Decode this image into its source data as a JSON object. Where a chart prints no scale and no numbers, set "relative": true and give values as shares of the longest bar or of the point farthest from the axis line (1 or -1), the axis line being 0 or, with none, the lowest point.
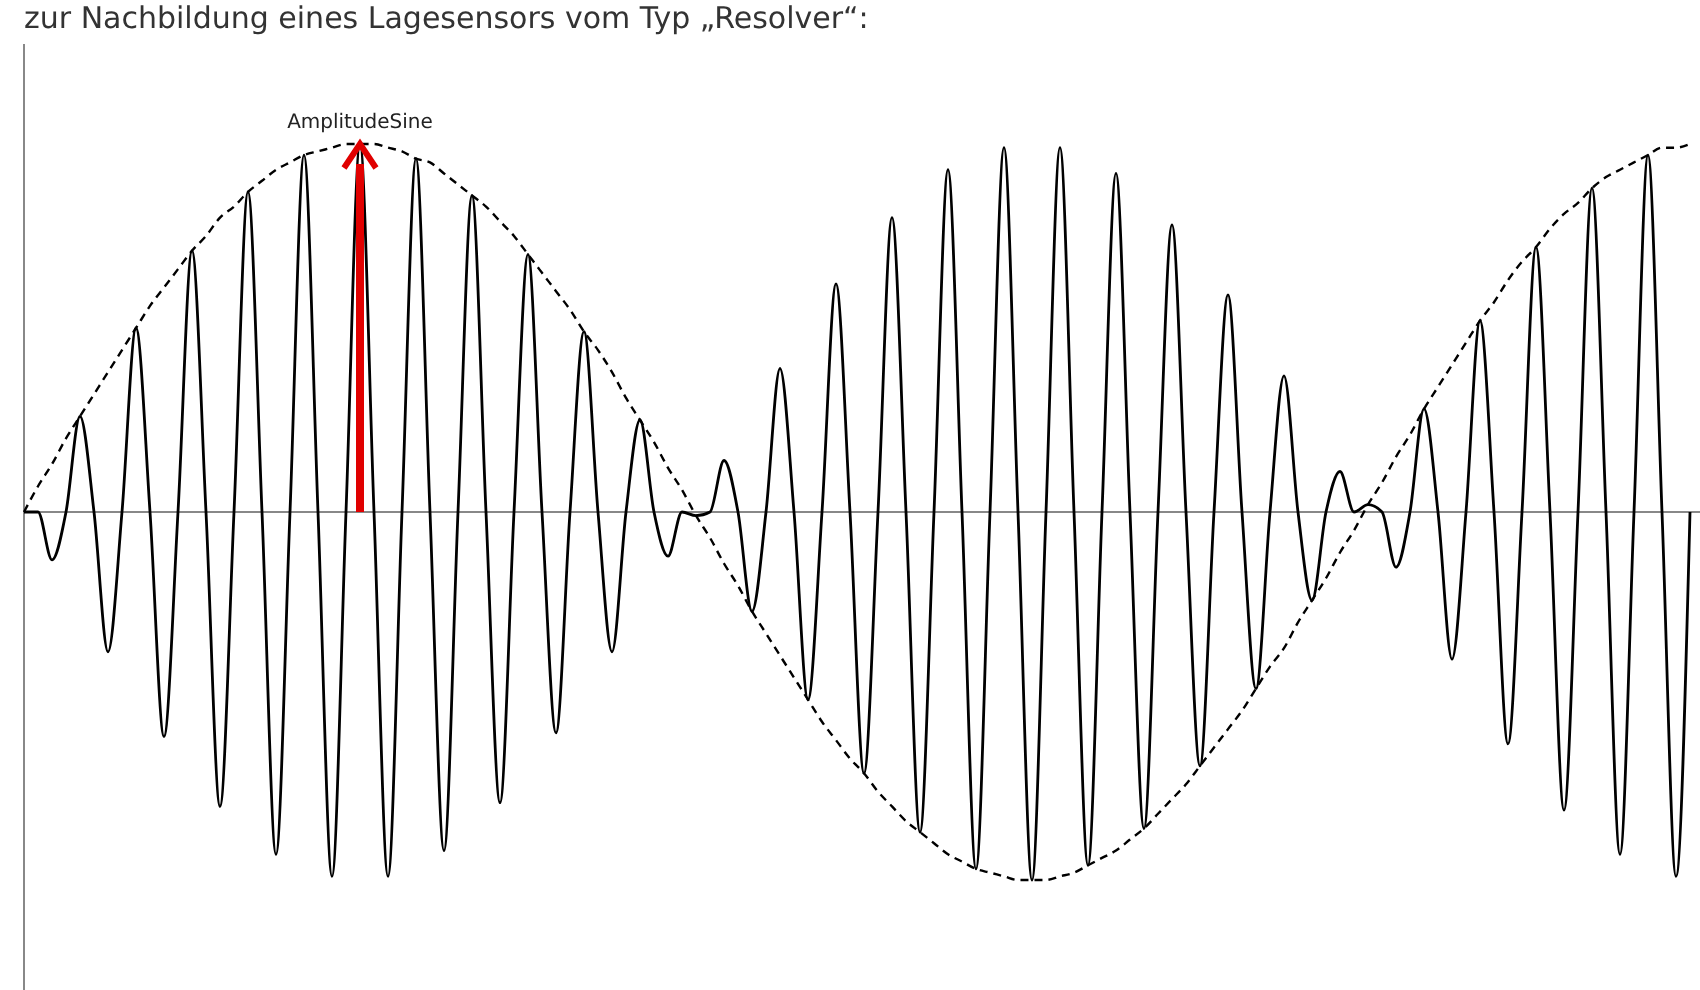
{
  "chart_data": {
    "type": "line",
    "title": "zur Nachbildung eines Lagesensors vom Typ „Resolver“:",
    "relative": true,
    "categories": [
      null,
      null,
      null,
      null,
      null,
      null,
      null,
      null,
      null,
      null,
      null,
      null,
      null,
      null,
      null,
      null,
      null,
      null,
      null,
      null,
      null,
      null,
      null,
      null,
      null,
      null,
      null,
      null,
      null,
      null,
      null,
      null,
      null,
      null,
      null,
      null,
      null,
      null,
      null,
      null,
      null,
      null,
      null,
      null,
      null,
      null,
      null,
      null,
      null,
      null,
      null,
      null,
      null,
      null,
      null,
      null,
      null,
      null,
      null,
      null,
      null,
      null,
      null,
      null,
      null,
      null,
      null,
      null,
      null,
      null,
      null,
      null,
      null,
      null,
      null,
      null,
      null,
      null,
      null,
      null,
      null,
      null,
      null,
      null,
      null,
      null,
      null,
      null,
      null,
      null,
      null,
      null,
      null,
      null,
      null,
      null,
      null,
      null,
      null,
      null,
      null,
      null,
      null,
      null,
      null,
      null,
      null,
      null,
      null,
      null,
      null,
      null,
      null,
      null,
      null,
      null,
      null,
      null,
      null,
      null
    ],
    "series": [
      {
        "color": "#000000",
        "line_style": "solid",
        "values": [
          0,
          0,
          -0.13,
          0,
          0.26,
          0,
          -0.38,
          0,
          0.5,
          0,
          -0.61,
          0,
          0.71,
          0,
          -0.8,
          0,
          0.87,
          0,
          -0.93,
          0,
          0.97,
          0,
          -0.99,
          0,
          1,
          0,
          -0.99,
          0,
          0.96,
          0,
          -0.92,
          0,
          0.86,
          0,
          -0.79,
          0,
          0.7,
          0,
          -0.6,
          0,
          0.49,
          0,
          -0.38,
          0,
          0.25,
          0,
          -0.12,
          0,
          -0.01,
          0,
          0.14,
          0,
          -0.27,
          0,
          0.39,
          0,
          -0.51,
          0,
          0.62,
          0,
          -0.71,
          0,
          0.8,
          0,
          -0.87,
          0,
          0.93,
          0,
          -0.97,
          0,
          0.99,
          0,
          -1,
          0,
          0.99,
          0,
          -0.96,
          0,
          0.92,
          0,
          -0.86,
          0,
          0.78,
          0,
          -0.69,
          0,
          0.59,
          0,
          -0.48,
          0,
          0.37,
          0,
          -0.24,
          0,
          0.11,
          0,
          0.02,
          0,
          -0.15,
          0,
          0.28,
          0,
          -0.4,
          0,
          0.52,
          0,
          -0.63,
          0,
          0.72,
          0,
          -0.81,
          0,
          0.88,
          0,
          -0.93,
          0,
          0.97,
          0,
          -0.99,
          0
        ]
      },
      {
        "color": "#000000",
        "line_style": "dashed",
        "values": [
          0,
          0.07,
          0.13,
          0.2,
          0.26,
          0.32,
          0.38,
          0.44,
          0.5,
          0.56,
          0.61,
          0.66,
          0.71,
          0.75,
          0.8,
          0.83,
          0.87,
          0.9,
          0.93,
          0.95,
          0.97,
          0.98,
          0.99,
          1,
          1,
          1,
          0.99,
          0.98,
          0.96,
          0.95,
          0.92,
          0.89,
          0.86,
          0.83,
          0.79,
          0.75,
          0.7,
          0.65,
          0.6,
          0.55,
          0.49,
          0.44,
          0.38,
          0.31,
          0.25,
          0.19,
          0.12,
          0.06,
          -0.01,
          -0.07,
          -0.14,
          -0.2,
          -0.27,
          -0.33,
          -0.39,
          -0.45,
          -0.51,
          -0.57,
          -0.62,
          -0.67,
          -0.71,
          -0.76,
          -0.8,
          -0.84,
          -0.87,
          -0.9,
          -0.93,
          -0.95,
          -0.97,
          -0.98,
          -0.99,
          -1,
          -1,
          -1,
          -0.99,
          -0.98,
          -0.96,
          -0.94,
          -0.92,
          -0.89,
          -0.86,
          -0.82,
          -0.78,
          -0.74,
          -0.69,
          -0.64,
          -0.59,
          -0.54,
          -0.48,
          -0.42,
          -0.37,
          -0.3,
          -0.24,
          -0.18,
          -0.11,
          -0.05,
          0.02,
          0.08,
          0.15,
          0.21,
          0.28,
          0.34,
          0.4,
          0.46,
          0.52,
          0.57,
          0.63,
          0.68,
          0.72,
          0.77,
          0.81,
          0.84,
          0.88,
          0.91,
          0.93,
          0.95,
          0.97,
          0.99,
          0.99,
          1
        ]
      }
    ],
    "annotations": [
      {
        "text": "AmplitudeSine",
        "y": 1
      }
    ]
  }
}
